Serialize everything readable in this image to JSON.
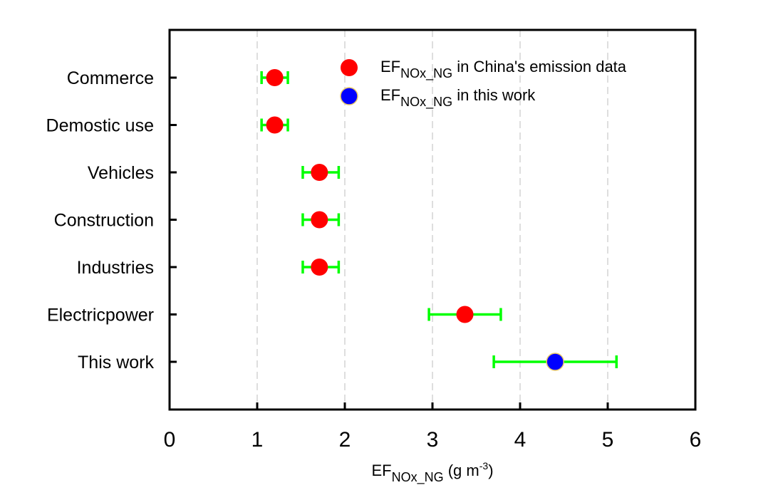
{
  "chart_data": {
    "type": "scatter",
    "x_axis": {
      "label_main": "EF",
      "label_sub": "NOx_NG",
      "label_unit_prefix": " (g m",
      "label_unit_sup": "-3",
      "label_unit_suffix": ")",
      "range": [
        0,
        6
      ],
      "ticks": [
        "0",
        "1",
        "2",
        "3",
        "4",
        "5",
        "6"
      ],
      "gridlines": "vertical dashed"
    },
    "categories": [
      "Commerce",
      "Demostic use",
      "Vehicles",
      "Construction",
      "Industries",
      "Electricpower",
      "This work"
    ],
    "series": [
      {
        "name_main": "EF",
        "name_sub": "NOx_NG",
        "name_rest": " in China's emission data",
        "color": "#ff0000",
        "points": [
          {
            "category": "Commerce",
            "x": 1.2,
            "xerr_low": 1.05,
            "xerr_high": 1.35
          },
          {
            "category": "Demostic use",
            "x": 1.2,
            "xerr_low": 1.05,
            "xerr_high": 1.35
          },
          {
            "category": "Vehicles",
            "x": 1.71,
            "xerr_low": 1.52,
            "xerr_high": 1.93
          },
          {
            "category": "Construction",
            "x": 1.71,
            "xerr_low": 1.52,
            "xerr_high": 1.93
          },
          {
            "category": "Industries",
            "x": 1.71,
            "xerr_low": 1.52,
            "xerr_high": 1.93
          },
          {
            "category": "Electricpower",
            "x": 3.37,
            "xerr_low": 2.96,
            "xerr_high": 3.78
          }
        ]
      },
      {
        "name_main": "EF",
        "name_sub": "NOx_NG",
        "name_rest": " in this work",
        "color": "#0000ff",
        "points": [
          {
            "category": "This work",
            "x": 4.4,
            "xerr_low": 3.7,
            "xerr_high": 5.1
          }
        ]
      }
    ],
    "error_bar_color": "#00ff00",
    "legend_position": "top-right"
  }
}
